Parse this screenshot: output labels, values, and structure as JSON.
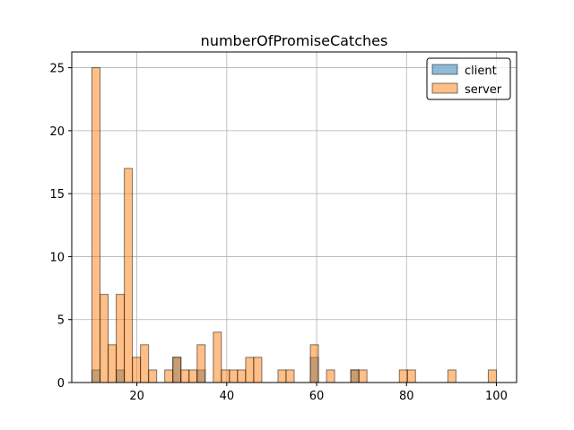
{
  "chart_data": {
    "type": "bar",
    "subtype": "overlaid-histogram",
    "title": "numberOfPromiseCatches",
    "xlabel": "",
    "ylabel": "",
    "xlim": [
      5.5,
      104.5
    ],
    "ylim": [
      0,
      26.25
    ],
    "xticks": [
      20,
      40,
      60,
      80,
      100
    ],
    "yticks": [
      0,
      5,
      10,
      15,
      20,
      25
    ],
    "grid": true,
    "legend_position": "top-right",
    "bin_width": 1.8,
    "series": [
      {
        "name": "client",
        "color": "#1f77b4",
        "bins": [
          {
            "x0": 10.0,
            "count": 1
          },
          {
            "x0": 15.4,
            "count": 1
          },
          {
            "x0": 22.6,
            "count": 0
          },
          {
            "x0": 28.0,
            "count": 2
          },
          {
            "x0": 33.4,
            "count": 1
          },
          {
            "x0": 58.6,
            "count": 2
          },
          {
            "x0": 67.6,
            "count": 1
          }
        ]
      },
      {
        "name": "server",
        "color": "#ff7f0e",
        "bins": [
          {
            "x0": 10.0,
            "count": 25
          },
          {
            "x0": 11.8,
            "count": 7
          },
          {
            "x0": 13.6,
            "count": 3
          },
          {
            "x0": 15.4,
            "count": 7
          },
          {
            "x0": 17.2,
            "count": 17
          },
          {
            "x0": 19.0,
            "count": 2
          },
          {
            "x0": 20.8,
            "count": 3
          },
          {
            "x0": 22.6,
            "count": 1
          },
          {
            "x0": 26.2,
            "count": 1
          },
          {
            "x0": 28.0,
            "count": 2
          },
          {
            "x0": 29.8,
            "count": 1
          },
          {
            "x0": 31.6,
            "count": 1
          },
          {
            "x0": 33.4,
            "count": 3
          },
          {
            "x0": 37.0,
            "count": 4
          },
          {
            "x0": 38.8,
            "count": 1
          },
          {
            "x0": 40.6,
            "count": 1
          },
          {
            "x0": 42.4,
            "count": 1
          },
          {
            "x0": 44.2,
            "count": 2
          },
          {
            "x0": 46.0,
            "count": 2
          },
          {
            "x0": 51.4,
            "count": 1
          },
          {
            "x0": 53.2,
            "count": 1
          },
          {
            "x0": 58.6,
            "count": 3
          },
          {
            "x0": 62.2,
            "count": 1
          },
          {
            "x0": 67.6,
            "count": 1
          },
          {
            "x0": 69.4,
            "count": 1
          },
          {
            "x0": 78.4,
            "count": 1
          },
          {
            "x0": 80.2,
            "count": 1
          },
          {
            "x0": 89.2,
            "count": 1
          },
          {
            "x0": 98.2,
            "count": 1
          }
        ]
      }
    ]
  }
}
